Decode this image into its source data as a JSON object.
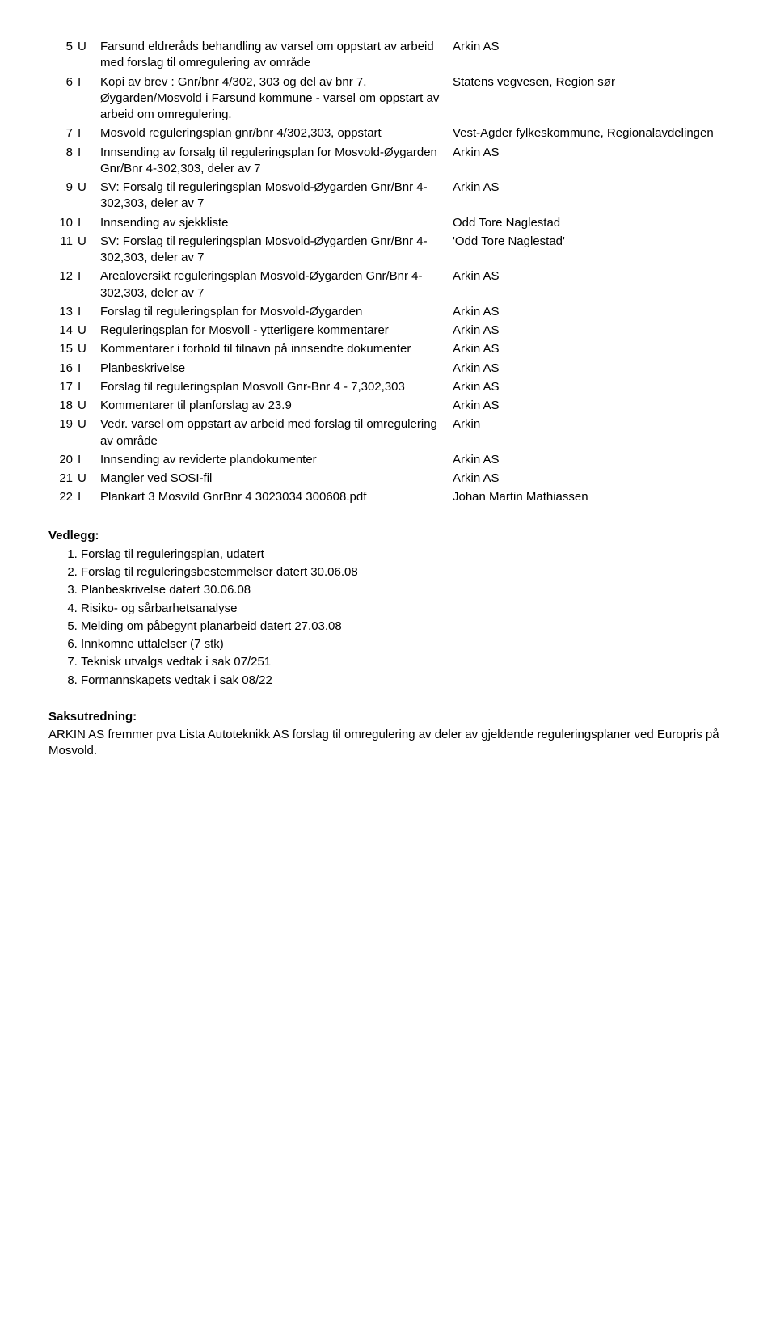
{
  "rows": [
    {
      "n": "5",
      "t": "U",
      "desc": "Farsund eldreråds behandling av varsel om oppstart av arbeid med forslag til omregulering av område",
      "party": "Arkin AS"
    },
    {
      "n": "6",
      "t": "I",
      "desc": "Kopi av brev : Gnr/bnr 4/302, 303 og del av bnr 7, Øygarden/Mosvold i Farsund kommune - varsel om oppstart av arbeid om omregulering.",
      "party": "Statens vegvesen, Region sør"
    },
    {
      "n": "7",
      "t": "I",
      "desc": "Mosvold reguleringsplan gnr/bnr 4/302,303, oppstart",
      "party": "Vest-Agder fylkeskommune, Regionalavdelingen"
    },
    {
      "n": "8",
      "t": "I",
      "desc": "Innsending av forsalg til reguleringsplan for Mosvold-Øygarden Gnr/Bnr 4-302,303, deler av 7",
      "party": "Arkin AS"
    },
    {
      "n": "9",
      "t": "U",
      "desc": "SV: Forsalg til reguleringsplan Mosvold-Øygarden Gnr/Bnr 4-302,303, deler av 7",
      "party": "Arkin AS"
    },
    {
      "n": "10",
      "t": "I",
      "desc": "Innsending av sjekkliste",
      "party": "Odd Tore Naglestad"
    },
    {
      "n": "11",
      "t": "U",
      "desc": "SV: Forslag til reguleringsplan Mosvold-Øygarden Gnr/Bnr 4-302,303, deler av 7",
      "party": "'Odd Tore Naglestad'"
    },
    {
      "n": "12",
      "t": "I",
      "desc": "Arealoversikt reguleringsplan Mosvold-Øygarden Gnr/Bnr 4-302,303, deler av 7",
      "party": "Arkin AS"
    },
    {
      "n": "13",
      "t": "I",
      "desc": "Forslag til reguleringsplan for Mosvold-Øygarden",
      "party": "Arkin AS"
    },
    {
      "n": "14",
      "t": "U",
      "desc": "Reguleringsplan for Mosvoll - ytterligere kommentarer",
      "party": "Arkin AS"
    },
    {
      "n": "15",
      "t": "U",
      "desc": "Kommentarer i forhold til filnavn på innsendte dokumenter",
      "party": "Arkin AS"
    },
    {
      "n": "16",
      "t": "I",
      "desc": "Planbeskrivelse",
      "party": "Arkin AS"
    },
    {
      "n": "17",
      "t": "I",
      "desc": "Forslag til reguleringsplan Mosvoll Gnr-Bnr 4 - 7,302,303",
      "party": "Arkin AS"
    },
    {
      "n": "18",
      "t": "U",
      "desc": "Kommentarer til planforslag av 23.9",
      "party": "Arkin AS"
    },
    {
      "n": "19",
      "t": "U",
      "desc": "Vedr. varsel om oppstart av arbeid med forslag til omregulering av område",
      "party": "Arkin"
    },
    {
      "n": "20",
      "t": "I",
      "desc": "Innsending av reviderte plandokumenter",
      "party": "Arkin AS"
    },
    {
      "n": "21",
      "t": "U",
      "desc": "Mangler ved SOSI-fil",
      "party": "Arkin AS"
    },
    {
      "n": "22",
      "t": "I",
      "desc": "Plankart 3 Mosvild GnrBnr 4 3023034 300608.pdf",
      "party": "Johan Martin Mathiassen"
    }
  ],
  "attachments_heading": "Vedlegg:",
  "attachments": [
    "Forslag til reguleringsplan, udatert",
    "Forslag til reguleringsbestemmelser datert 30.06.08",
    "Planbeskrivelse datert 30.06.08",
    "Risiko- og sårbarhetsanalyse",
    "Melding om påbegynt planarbeid datert 27.03.08",
    "Innkomne uttalelser (7 stk)",
    "Teknisk utvalgs vedtak i sak 07/251",
    "Formannskapets vedtak i sak 08/22"
  ],
  "saks_heading": "Saksutredning:",
  "saks_body": "ARKIN AS fremmer pva Lista Autoteknikk AS forslag til omregulering av deler av gjeldende reguleringsplaner ved Europris på Mosvold."
}
